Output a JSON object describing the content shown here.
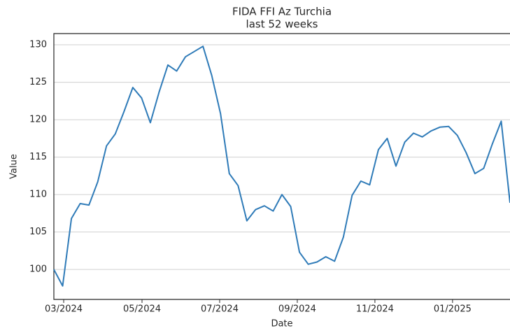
{
  "chart_data": {
    "type": "line",
    "title": "FIDA FFI Az Turchia",
    "subtitle": "last 52 weeks",
    "x_label": "Date",
    "y_label": "Value",
    "x": [
      0,
      1,
      2,
      3,
      4,
      5,
      6,
      7,
      8,
      9,
      10,
      11,
      12,
      13,
      14,
      15,
      16,
      17,
      18,
      19,
      20,
      21,
      22,
      23,
      24,
      25,
      26,
      27,
      28,
      29,
      30,
      31,
      32,
      33,
      34,
      35,
      36,
      37,
      38,
      39,
      40,
      41,
      42,
      43,
      44,
      45,
      46,
      47,
      48,
      49,
      50,
      51,
      52
    ],
    "series": [
      {
        "name": "FIDA FFI Az Turchia",
        "color": "#2f7bb8",
        "values": [
          100,
          97.8,
          106.8,
          108.8,
          108.6,
          111.7,
          116.5,
          118.1,
          121.1,
          124.3,
          122.9,
          119.6,
          123.7,
          127.3,
          126.5,
          128.4,
          129.1,
          129.8,
          125.9,
          120.8,
          112.8,
          111.2,
          106.5,
          108.0,
          108.5,
          107.8,
          110.0,
          108.4,
          102.3,
          100.7,
          101.0,
          101.7,
          101.1,
          104.3,
          109.9,
          111.8,
          111.3,
          116.0,
          117.5,
          113.8,
          117.0,
          118.2,
          117.7,
          118.5,
          119.0,
          119.1,
          117.9,
          115.6,
          112.8,
          113.5,
          116.8,
          119.8,
          108.9
        ]
      }
    ],
    "xlim": [
      0,
      52
    ],
    "xticks": [
      {
        "value": 1.12,
        "label": "03/2024"
      },
      {
        "value": 10.05,
        "label": "05/2024"
      },
      {
        "value": 18.9,
        "label": "07/2024"
      },
      {
        "value": 27.75,
        "label": "09/2024"
      },
      {
        "value": 36.6,
        "label": "11/2024"
      },
      {
        "value": 45.45,
        "label": "01/2025"
      }
    ],
    "ylim": [
      96,
      131.5
    ],
    "yticks": [
      100,
      105,
      110,
      115,
      120,
      125,
      130
    ],
    "grid": true
  }
}
